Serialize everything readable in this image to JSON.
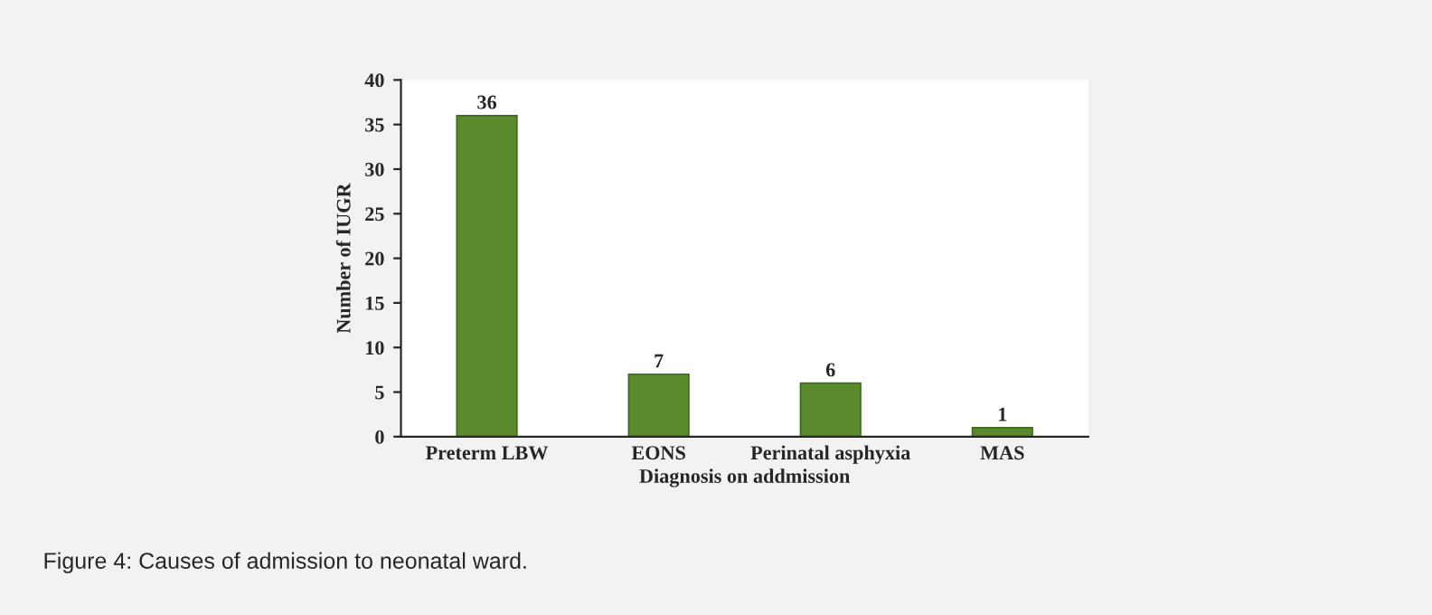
{
  "chart_data": {
    "type": "bar",
    "xlabel": "Diagnosis on addmission",
    "ylabel": "Number of IUGR",
    "categories": [
      "Preterm LBW",
      "EONS",
      "Perinatal asphyxia",
      "MAS"
    ],
    "values": [
      36,
      7,
      6,
      1
    ],
    "color": "#5a8a2c",
    "ylim": [
      0,
      40
    ],
    "yticks": [
      0,
      5,
      10,
      15,
      20,
      25,
      30,
      35,
      40
    ],
    "data_labels": true,
    "grid": false,
    "legend": false,
    "annotations": [
      "Figure 4: Causes of admission to neonatal ward."
    ]
  }
}
